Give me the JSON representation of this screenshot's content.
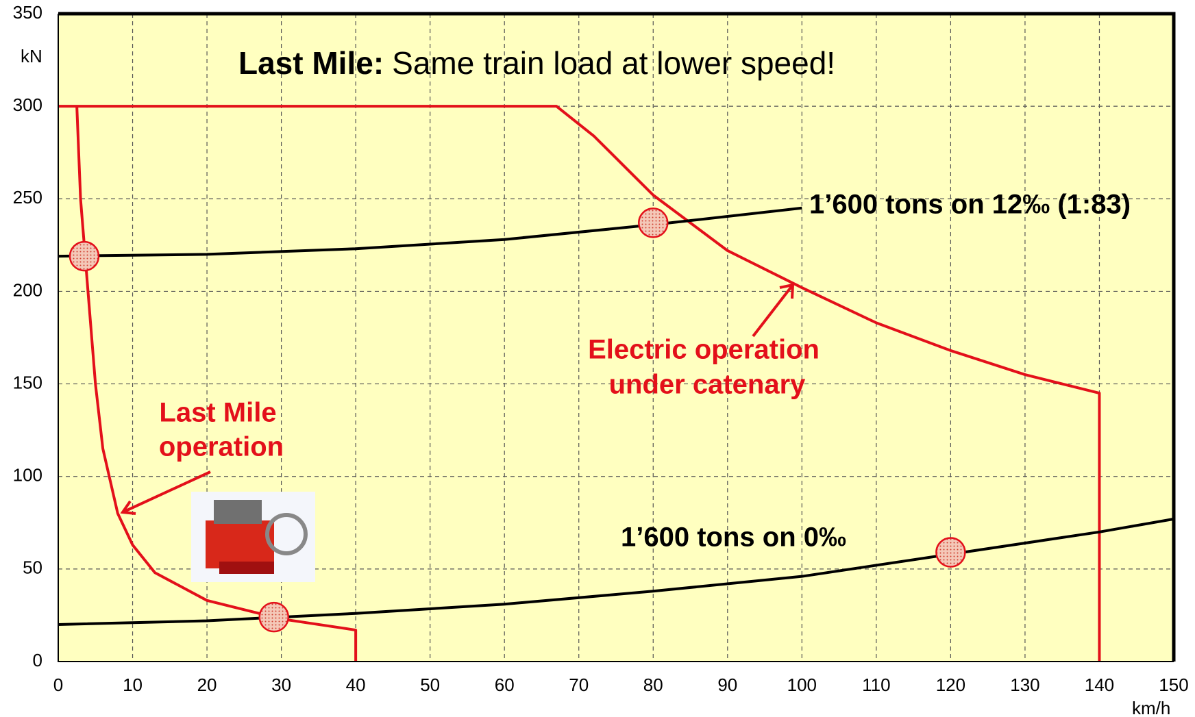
{
  "chart_data": {
    "type": "line",
    "title": "Last Mile:",
    "subtitle": "Same train load at lower speed!",
    "x_label": "km/h",
    "y_label": "kN",
    "xlim": [
      0,
      150
    ],
    "ylim": [
      0,
      350
    ],
    "xticks": [
      0,
      10,
      20,
      30,
      40,
      50,
      60,
      70,
      80,
      90,
      100,
      110,
      120,
      130,
      140,
      150
    ],
    "yticks": [
      0,
      50,
      100,
      150,
      200,
      250,
      300,
      350
    ],
    "grid": true,
    "series": [
      {
        "color": "#e3101a",
        "x": [
          0,
          67,
          72,
          80,
          90,
          100,
          110,
          120,
          130,
          140,
          140
        ],
        "values": [
          300,
          300,
          284,
          252,
          222,
          202,
          183,
          168,
          155,
          145,
          0
        ]
      },
      {
        "color": "#e3101a",
        "x": [
          2.5,
          3,
          4,
          5,
          6,
          8,
          10,
          13,
          20,
          30,
          40,
          40
        ],
        "values": [
          300,
          250,
          200,
          150,
          115,
          80,
          63,
          48,
          33,
          23,
          17,
          0
        ]
      },
      {
        "color": "#000000",
        "x": [
          0,
          20,
          40,
          60,
          80,
          100
        ],
        "values": [
          219,
          220,
          223,
          228,
          236,
          245
        ]
      },
      {
        "color": "#000000",
        "x": [
          0,
          20,
          40,
          60,
          80,
          100,
          120,
          140,
          150
        ],
        "values": [
          20,
          22,
          26,
          31,
          38,
          46,
          58,
          70,
          77
        ]
      }
    ],
    "highlights": {
      "x": [
        3.5,
        80,
        29,
        120
      ],
      "values": [
        219,
        237,
        24,
        59
      ]
    },
    "annotations": [
      "1’600 tons on 12‰ (1:83)",
      "1’600 tons on 0‰",
      "Electric operation",
      "under catenary",
      "Last Mile",
      "operation"
    ]
  }
}
